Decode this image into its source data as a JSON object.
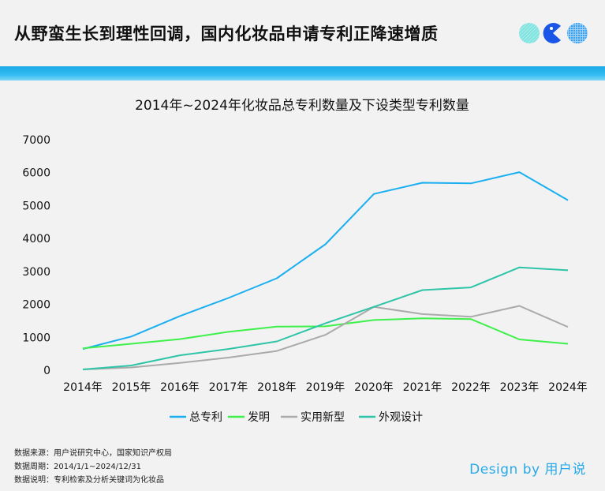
{
  "header": {
    "title": "从野蛮生长到理性回调，国内化妆品申请专利正降速增质"
  },
  "footer": {
    "source": "数据来源：用户说研究中心，国家知识产权局",
    "period": "数据周期：2014/1/1~2024/12/31",
    "note": "数据说明：专利检索及分析关键词为化妆品",
    "credit": "Design by 用户说"
  },
  "colors": {
    "accent": "#1fb0ec",
    "total": "#1aaff0",
    "invention": "#3ef04a",
    "utility": "#aaaaaa",
    "design": "#2ec4a8"
  },
  "chart_data": {
    "type": "line",
    "title": "2014年~2024年化妆品总专利数量及下设类型专利数量",
    "categories": [
      "2014年",
      "2015年",
      "2016年",
      "2017年",
      "2018年",
      "2019年",
      "2020年",
      "2021年",
      "2022年",
      "2023年",
      "2024年"
    ],
    "ylim": [
      0,
      7000
    ],
    "yticks": [
      0,
      1000,
      2000,
      3000,
      4000,
      5000,
      6000,
      7000
    ],
    "grid": false,
    "legend_position": "bottom",
    "series": [
      {
        "name": "总专利",
        "color": "#1aaff0",
        "values": [
          620,
          1000,
          1620,
          2170,
          2770,
          3800,
          5330,
          5670,
          5650,
          5990,
          5140
        ]
      },
      {
        "name": "发明",
        "color": "#3ef04a",
        "values": [
          640,
          780,
          920,
          1140,
          1300,
          1310,
          1500,
          1550,
          1530,
          910,
          780
        ]
      },
      {
        "name": "实用新型",
        "color": "#aaaaaa",
        "values": [
          0,
          60,
          200,
          360,
          560,
          1050,
          1900,
          1680,
          1600,
          1930,
          1290
        ]
      },
      {
        "name": "外观设计",
        "color": "#2ec4a8",
        "values": [
          0,
          120,
          430,
          620,
          850,
          1400,
          1900,
          2410,
          2490,
          3100,
          3010
        ]
      }
    ]
  }
}
